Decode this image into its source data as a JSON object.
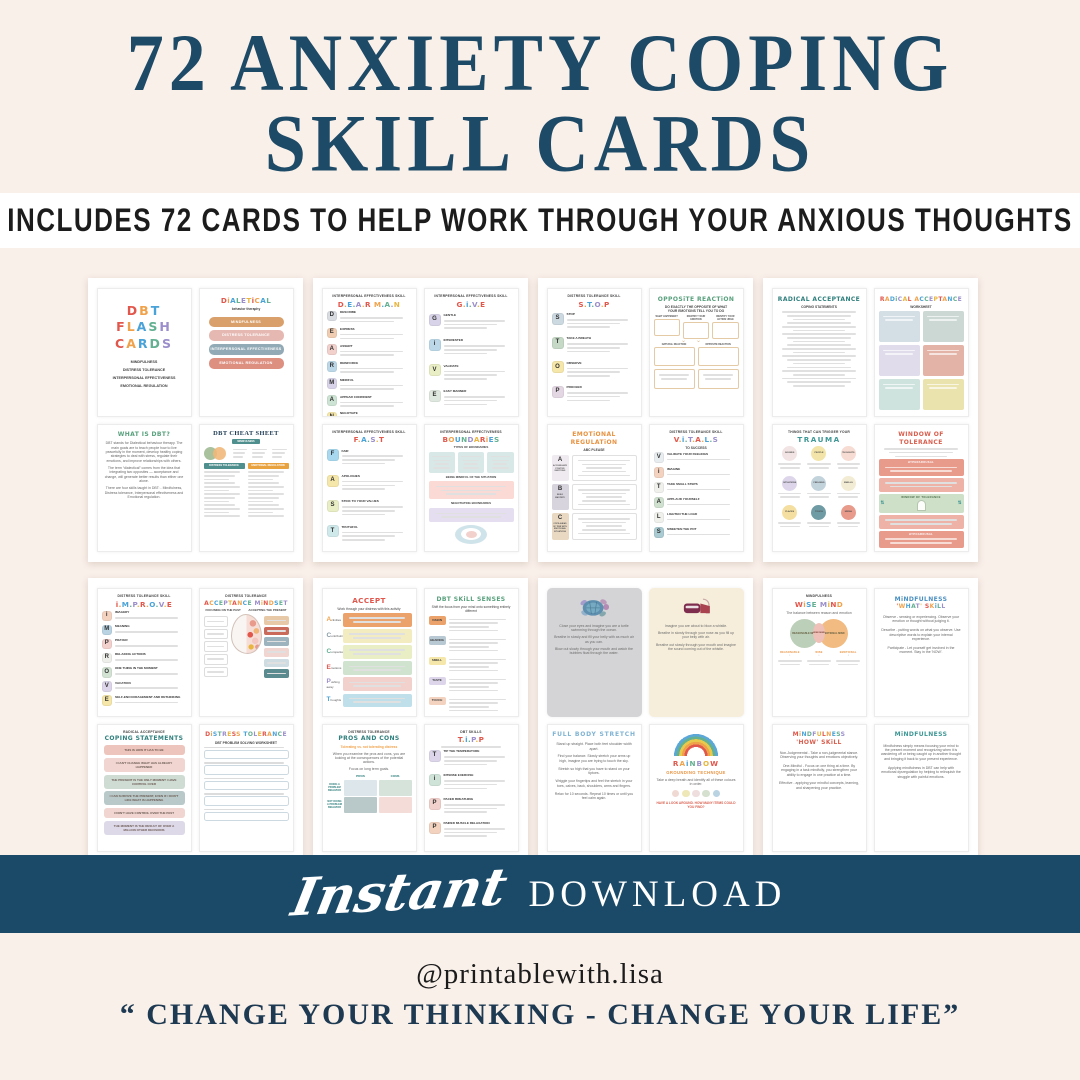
{
  "header": {
    "title_line1": "72 ANXIETY COPING",
    "title_line2": "SKILL CARDS",
    "subtitle": "INCLUDES 72 CARDS TO HELP WORK THROUGH YOUR ANXIOUS THOUGHTS"
  },
  "banner": {
    "script_word": "Instant",
    "caps_word": "DOWNLOAD"
  },
  "footer": {
    "handle": "@printablewith.lisa",
    "quote": "“ CHANGE YOUR THINKING - CHANGE YOUR LIFE”"
  },
  "colors": {
    "navy": "#1a4a68",
    "cream": "#faf0ea",
    "rainbow": [
      "#e2574c",
      "#f0a24b",
      "#4aa3d8",
      "#63b092",
      "#9b8ecb",
      "#e8b63f"
    ]
  },
  "pages": [
    {
      "cards": [
        {
          "lines": [
            "DBT",
            "FLASH",
            "CARDS"
          ],
          "items": [
            "MINDFULNESS",
            "DISTRESS TOLERANCE",
            "INTERPERSONAL EFFECTIVENESS",
            "EMOTIONAL REGULATION"
          ]
        },
        {
          "title": "DiALETiCAL",
          "subtitle": "behavior theraphy",
          "pills": [
            {
              "label": "MINDFULNESS",
              "color": "#d9a06b"
            },
            {
              "label": "DISTRESS TOLERANCE",
              "color": "#e6b8b2"
            },
            {
              "label": "INTERPERSONAL EFFECTIVENESS",
              "color": "#92aab6"
            },
            {
              "label": "EMOTIONAL REGULATION",
              "color": "#dd8f80"
            }
          ]
        },
        {
          "title": "WHAT IS DBT?",
          "color": "#58a07c",
          "paragraphs": [
            "DBT stands for Dialectical behaviour therapy. The main goals are to teach people how to live peacefully in the moment, develop healthy coping strategies to deal with stress, regulate their emotions, and improve relationships with others.",
            "The term “dialectical” comes from the idea that integrating two opposites — acceptance and change, will generate better results than either one alone.",
            "There are four skills taught in DBT: - Mindfulness, Distress tolerance, Interpersonal effectiveness and Emotional regulation."
          ]
        },
        {
          "title": "DBT CHEAT SHEET",
          "badge": "MINDFULNESS",
          "columns": [
            {
              "label": "DISTRESS TOLERANCE",
              "color": "#4f8f8d"
            },
            {
              "label": "EMOTIONAL REGULATION",
              "color": "#e8a23f"
            }
          ]
        }
      ]
    },
    {
      "cards": [
        {
          "kicker": "INTERPERSONAL EFFECTIVENESS SKILL",
          "title": "D.E.A.R M.A.N",
          "tiles": [
            {
              "letter": "D",
              "label": "DESCRIBE",
              "color": "#d9dde2"
            },
            {
              "letter": "E",
              "label": "EXPRESS",
              "color": "#f0cdb1"
            },
            {
              "letter": "A",
              "label": "ASSERT",
              "color": "#f2d0cc"
            },
            {
              "letter": "R",
              "label": "REINFORCE",
              "color": "#bcd8e8"
            },
            {
              "letter": "M",
              "label": "MINDFUL",
              "color": "#d8d3e8"
            },
            {
              "letter": "A",
              "label": "APPEAR CONFIDENT",
              "color": "#cde3d3"
            },
            {
              "letter": "N",
              "label": "NEGOTIATE",
              "color": "#f5e6a9"
            }
          ]
        },
        {
          "kicker": "INTERPERSONAL EFFECTIVENESS SKILL",
          "title": "G.i.V.E",
          "tiles": [
            {
              "letter": "G",
              "label": "GENTLE",
              "color": "#d8d3e8"
            },
            {
              "letter": "i",
              "label": "INTERESTED",
              "color": "#bcd8e8"
            },
            {
              "letter": "V",
              "label": "VALIDATE",
              "color": "#e9eec4"
            },
            {
              "letter": "E",
              "label": "EASY MANNER",
              "color": "#dfe8df"
            }
          ]
        },
        {
          "kicker": "INTERPERSONAL EFFECTIVENESS SKILL",
          "title": "F.A.S.T",
          "tiles": [
            {
              "letter": "F",
              "label": "FAIR",
              "color": "#a8d8ef"
            },
            {
              "letter": "A",
              "label": "APOLOGIES",
              "color": "#f5e6a9"
            },
            {
              "letter": "S",
              "label": "STICK TO YOUR VALUES",
              "color": "#e9eec4"
            },
            {
              "letter": "T",
              "label": "TRUTHFUL",
              "color": "#cfe8ea"
            }
          ]
        },
        {
          "kicker": "INTERPERSONAL EFFECTIVENESS",
          "title": "BOUNDARiES",
          "sections": [
            "TYPES OF BOUNDARIES",
            "BEING MINDFUL OF THE SITUATION",
            "NEGOTIATING BOUNDARIES"
          ]
        }
      ]
    },
    {
      "cards": [
        {
          "kicker": "DISTRESS TOLERANCE SKILL",
          "title": "S.T.O.P",
          "tiles": [
            {
              "letter": "S",
              "label": "STOP",
              "color": "#ccd9e0"
            },
            {
              "letter": "T",
              "label": "TAKE A BREATH",
              "color": "#c5d9c6"
            },
            {
              "letter": "O",
              "label": "OBSERVE",
              "color": "#f5e6a9"
            },
            {
              "letter": "P",
              "label": "PROCEED",
              "color": "#e3d7e3"
            }
          ]
        },
        {
          "title": "OPPOSiTE REACTiON",
          "color": "#58a07c",
          "subtitle": "DO EXACTLY THE OPPOSITE OF WHAT YOUR EMOTIONS TELL YOU TO DO",
          "top_labels": [
            "WHAT HAPPENED?",
            "IDENTIFY YOUR EMOTION",
            "IDENTIFY YOUR ACTION URGE"
          ],
          "mid_labels": [
            "NATURAL REACTION",
            "OPPOSITE REACTION"
          ]
        },
        {
          "title": "EMOTiONAL REGULATiON",
          "color": "#e8923f",
          "subtitle": "ABC PLEASE",
          "rows": [
            {
              "letter": "A",
              "caption": "ACCUMULATE POSITIVE EMOTIONS",
              "color": "#efeaef"
            },
            {
              "letter": "B",
              "caption": "BUILD MASTERY",
              "color": "#d8d4de"
            },
            {
              "letter": "C",
              "caption": "COPE AHEAD OF TIME WITH EMOTIONAL SITUATIONS",
              "color": "#ead9c2"
            }
          ]
        },
        {
          "kicker": "DISTRESS TOLERANCE SKILL",
          "title": "V.i.T.A.L.S",
          "subtitle": "TO SUCCESS",
          "tiles": [
            {
              "letter": "V",
              "label": "VALIDATE YOUR FEELINGS",
              "color": "#e8edf0"
            },
            {
              "letter": "i",
              "label": "IMAGINE",
              "color": "#f3d3c0"
            },
            {
              "letter": "T",
              "label": "TAKE SMALL STEPS",
              "color": "#f0f0ec"
            },
            {
              "letter": "A",
              "label": "APPLAUD YOURSELF",
              "color": "#cfe0cf"
            },
            {
              "letter": "L",
              "label": "LIGHTEN THE LOAD",
              "color": "#f0f0ec"
            },
            {
              "letter": "S",
              "label": "SWEETEN THE POT",
              "color": "#a9cbd1"
            }
          ]
        }
      ]
    },
    {
      "cards": [
        {
          "title": "RADICAL ACCEPTANCE",
          "color": "#2e7f7d",
          "subtitle": "COPING STATEMENTS"
        },
        {
          "title": "RADiCAL ACCEPTANCE",
          "subtitle": "WORKSHEET",
          "boxes": [
            "#d3dfe5",
            "#ccd8d3",
            "#e0dcec",
            "#e4b3a8",
            "#cfe3de",
            "#eae3ae"
          ]
        },
        {
          "kicker": "THINGS THAT CAN TRIGGER YOUR",
          "title": "TRAUMA",
          "color": "#3f9795",
          "circles": [
            {
              "label": "SOUNDS",
              "color": "#f2e4e4"
            },
            {
              "label": "PEOPLE",
              "color": "#f3e5a9"
            },
            {
              "label": "THOUGHTS",
              "color": "#f6dcd3"
            },
            {
              "label": "SITUATIONS",
              "color": "#ddd6ea"
            },
            {
              "label": "FEELINGS",
              "color": "#c3d3dc"
            },
            {
              "label": "SMELLS",
              "color": "#f3ecd4"
            },
            {
              "label": "PLACES",
              "color": "#f5dfa0"
            },
            {
              "label": "TOUCH",
              "color": "#6f9ba4"
            },
            {
              "label": "MEDIA",
              "color": "#e89a8b"
            }
          ]
        },
        {
          "title": "WINDOW OF TOLERANCE",
          "color": "#d95f4e",
          "labels": {
            "top": "HYPERAROUSAL",
            "middle": "WINDOW OF TOLERANCE",
            "bottom": "HYPOAROUSAL"
          }
        }
      ]
    },
    {
      "cards": [
        {
          "kicker": "DISTRESS TOLERANCE SKILL",
          "title": "i.M.P.R.O.V.E",
          "tiles": [
            {
              "letter": "i",
              "label": "IMAGERY",
              "color": "#f3d3c0"
            },
            {
              "letter": "M",
              "label": "MEANING",
              "color": "#b9d3e3"
            },
            {
              "letter": "P",
              "label": "PRAYER",
              "color": "#f2d0cc"
            },
            {
              "letter": "R",
              "label": "RELAXING ACTIONS",
              "color": "#eeeeea"
            },
            {
              "letter": "O",
              "label": "ONE THING IN THE MOMENT",
              "color": "#d3e3d3"
            },
            {
              "letter": "V",
              "label": "VACATION",
              "color": "#ddd6ea"
            },
            {
              "letter": "E",
              "label": "SELF-ENCOURAGEMENT AND RETHINKING",
              "color": "#f5e6a9"
            }
          ]
        },
        {
          "kicker": "DISTRESS TOLERANCE",
          "title": "ACCEPTANCE MiNDSET",
          "col_left": "FOCUSING ON THE PAST",
          "col_right": "ACCEPTING THE PRESENT",
          "right_boxes": [
            "#e7c9a8",
            "#c96a5b",
            "#9db4be",
            "#f0d5d0",
            "#cfdce2",
            "#5b8a8f"
          ]
        },
        {
          "kicker": "RADICAL ACCEPTANCE",
          "title": "COPING STATEMENTS",
          "color": "#2e7f7d",
          "pills": [
            {
              "text": "THIS IS HOW IT HAS TO BE",
              "color": "#eec5bc"
            },
            {
              "text": "I CAN'T CHANGE WHAT HAS ALREADY HAPPENED",
              "color": "#f0d5d0"
            },
            {
              "text": "THE PRESENT IS THE ONLY MOMENT I HAVE CONTROL OVER",
              "color": "#cfdcd4"
            },
            {
              "text": "I CAN SURVIVE THE PRESENT, EVEN IF I DON'T LIKE WHAT IS HAPPENING",
              "color": "#b9c9c9"
            },
            {
              "text": "I DON'T HAVE CONTROL OVER THE PAST",
              "color": "#f0d5d0"
            },
            {
              "text": "THE MOMENT IS THE RESULT OF OVER A MILLION OTHER DECISIONS",
              "color": "#ded9e8"
            }
          ]
        },
        {
          "title": "DiSTRESS TOLERANCE",
          "subtitle": "DBT PROBLEM SOLVING WORKSHEET",
          "fields": [
            "",
            "",
            "",
            "",
            ""
          ]
        }
      ]
    },
    {
      "cards": [
        {
          "title": "ACCEPT",
          "color": "#e2574c",
          "subtitle": "Work through your distress with this activity",
          "rows": [
            {
              "letter": "A",
              "word": "ctivities",
              "lcolor": "#f0a24b",
              "color": "#eba36b"
            },
            {
              "letter": "C",
              "word": "ontributing",
              "lcolor": "#8a9aa5",
              "color": "#f2ecc0"
            },
            {
              "letter": "C",
              "word": "omparisons",
              "lcolor": "#63b092",
              "color": "#e9eec4"
            },
            {
              "letter": "E",
              "word": "motions",
              "lcolor": "#e2574c",
              "color": "#cfe3cf"
            },
            {
              "letter": "P",
              "word": "ushing away",
              "lcolor": "#9b8ecb",
              "color": "#f2d0cc"
            },
            {
              "letter": "T",
              "word": "houghts",
              "lcolor": "#4aa3d8",
              "color": "#bfe0ea"
            }
          ]
        },
        {
          "title": "DBT SKiLL SENSES",
          "color": "#58a07c",
          "subtitle": "Shift the focus from your mind onto something entirely different",
          "tiles": [
            {
              "word": "ViSiON",
              "color": "#eba36b"
            },
            {
              "word": "HEARiNG",
              "color": "#b9c9d3"
            },
            {
              "word": "SMELL",
              "color": "#f5e6a9"
            },
            {
              "word": "TASTE",
              "color": "#ddd6ea"
            },
            {
              "word": "TOUCH",
              "color": "#f3d3c0"
            }
          ]
        },
        {
          "kicker": "DISTRESS TOLERANCE",
          "title": "PROS AND CONS",
          "color": "#2e7f7d",
          "subtitle": "Tolerating vs. not tolerating distress",
          "subtitle_color": "#f0a24b",
          "paragraphs": [
            "When you examine the pros and cons, you are looking at the consequences of the potential actions.",
            "Focus on long term goals."
          ],
          "col_headers": [
            "PROS",
            "CONS"
          ],
          "row_headers": [
            "DOING A PROBLEM BEHAVIOR",
            "NOT DOING A PROBLEM BEHAVIOR"
          ],
          "cell_colors": [
            "#dde6ea",
            "#d5e3da",
            "#b9c9c9",
            "#f4ddd8"
          ]
        },
        {
          "kicker": "DBT SKILLS",
          "title": "T.i.P.P",
          "tiles": [
            {
              "letter": "T",
              "label": "TIP THE TEMPERATURE",
              "color": "#ddd6ea"
            },
            {
              "letter": "i",
              "label": "INTENSE EXERCISE",
              "color": "#cfe3d8"
            },
            {
              "letter": "P",
              "label": "PACED BREATHING",
              "color": "#f2d0cc"
            },
            {
              "letter": "P",
              "label": "PAIRED MUSCLE RELAXATION",
              "color": "#f3d3c0"
            }
          ]
        }
      ]
    },
    {
      "cards": [
        {
          "bg": "#d4d4d6",
          "paragraphs": [
            "Close your eyes and imagine you are a turtle swimming through the ocean.",
            "Breathe in slowly and fill your belly with as much air as you can.",
            "Blow out slowly through your mouth and watch the bubbles float through the water."
          ]
        },
        {
          "bg": "#f6eedb",
          "paragraphs": [
            "Imagine you are about to blow a whistle.",
            "Breathe in slowly through your nose as you fill up your belly with air.",
            "Breathe out slowly through your mouth and imagine the sound coming out of the whistle."
          ]
        },
        {
          "title": "FULL BODY STRETCH",
          "color": "#7fb3d3",
          "paragraphs": [
            "Stand up straight. Place both feet shoulder width apart.",
            "Find your balance. Slowly stretch your arms up high, imagine you are trying to touch the sky.",
            "Stretch so high that you have to stand on your tiptoes.",
            "Wriggle your fingertips and feel the stretch in your toes, calves, back, shoulders, arms and fingers.",
            "Relax for 10 seconds. Repeat 10 times or until you feel calm again."
          ]
        },
        {
          "title": "RAiNBOW",
          "subtitle": "GROUNDING TECHNIQUE",
          "subtitle_color": "#e8923f",
          "paragraph": "Take a deep breath and identify all of these colours in order.",
          "dots": [
            "#f0d8d3",
            "#eee8b8",
            "#efdede",
            "#d5e0cf",
            "#b9d3e3"
          ],
          "footer": "HAVE A LOOK AROUND. HOW MANY ITEMS COULD YOU FIND?",
          "footer_color": "#d95f4e"
        }
      ]
    },
    {
      "cards": [
        {
          "kicker": "MINDFULNESS",
          "title": "WiSE MiND",
          "subtitle": "The balance between reason and emotion",
          "venn": {
            "left": "REASONABLE MIND",
            "right": "EMOTIONAL MIND",
            "center": "WISE MIND"
          },
          "legend": [
            "REASONABLE",
            "WISE",
            "EMOTIONAL"
          ]
        },
        {
          "title1": "MiNDFULNESS",
          "title1_color": "#4a8fc0",
          "title2": "'WHAT' SKiLL",
          "paragraphs": [
            "Observe - sensing or experiencing. Observe your emotion or thought without judging it.",
            "Describe - putting words on what you observe. Use descriptive words to explain your internal experience.",
            "Participate - Let yourself get involved in the moment. Stay in the 'NOW'."
          ]
        },
        {
          "title1": "MiNDFULNESS",
          "title2": "'HOW' SKiLL",
          "title2_color": "#d95f4e",
          "paragraphs": [
            "Non-Judgemental - Take a non-judgmental stance. Observing your thoughts and emotions objectively.",
            "One-Mindful - Focus on one thing at a time. By engaging in a task mindfully, you strengthen your ability to engage in one practice at a time.",
            "Effective - applying your mindful concepts, learning, and sharpening your practice."
          ]
        },
        {
          "title": "MiNDFULNESS",
          "color": "#3f9795",
          "paragraphs": [
            "Mindfulness simply means focusing your mind to the present moment and recognizing when it is wandering off or being caught up in another thought and bringing it back to your present experience.",
            "Applying mindfulness in DBT can help with emotional dysregulation by helping to relinquish the struggle with painful emotions."
          ]
        }
      ]
    }
  ]
}
